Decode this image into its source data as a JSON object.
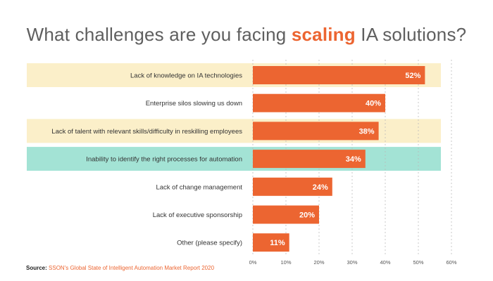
{
  "title": {
    "before": "What challenges are you facing ",
    "highlight": "scaling",
    "after": " IA solutions?"
  },
  "source": {
    "label": "Source:",
    "text": "SSON's Global State of Intelligent Automation Market Report 2020"
  },
  "colors": {
    "bar": "#ec6531",
    "band_highlight": "#fbefc9",
    "band_teal": "#a3e3d5",
    "title_text": "#5f5f5f",
    "title_accent": "#ec6531",
    "label_text": "#333333",
    "axis_text": "#555555",
    "grid": "#bbbbbb"
  },
  "chart_data": {
    "type": "bar",
    "orientation": "horizontal",
    "categories": [
      "Lack of knowledge  on IA technologies",
      "Enterprise silos slowing us down",
      "Lack of talent with relevant skills/difficulty in reskilling employees",
      "Inability to identify the right processes for automation",
      "Lack of change management",
      "Lack of executive sponsorship",
      "Other (please specify)"
    ],
    "values": [
      52,
      40,
      38,
      34,
      24,
      20,
      11
    ],
    "value_labels": [
      "52%",
      "40%",
      "38%",
      "34%",
      "24%",
      "20%",
      "11%"
    ],
    "row_bands": [
      "highlight",
      "none",
      "highlight",
      "teal",
      "none",
      "none",
      "none"
    ],
    "xlim": [
      0,
      60
    ],
    "xticks": [
      0,
      10,
      20,
      30,
      40,
      50,
      60
    ],
    "xtick_labels": [
      "0%",
      "10%",
      "20%",
      "30%",
      "40%",
      "50%",
      "60%"
    ],
    "grid": "dashed vertical"
  }
}
